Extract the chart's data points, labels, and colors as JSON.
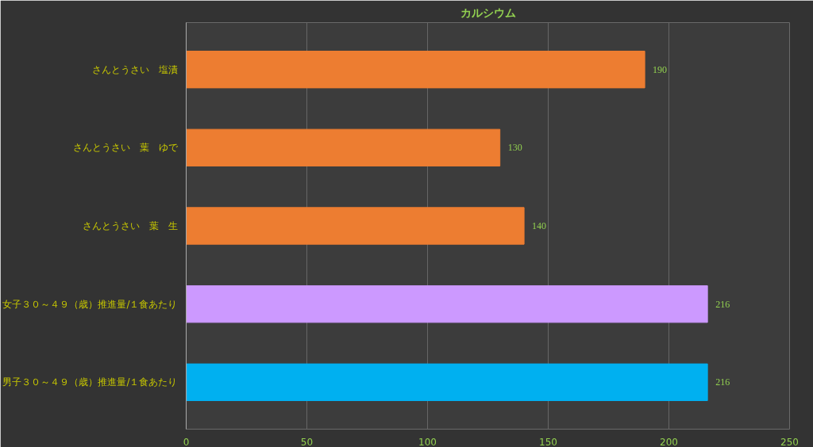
{
  "chart_data": {
    "type": "bar",
    "orientation": "horizontal",
    "title": "カルシウム",
    "categories": [
      "さんとうさい　塩漬",
      "さんとうさい　葉　ゆで",
      "さんとうさい　葉　生",
      "女子３０～４９（歳）推進量/１食あたり",
      "男子３０～４９（歳）推進量/１食あたり"
    ],
    "values": [
      190,
      130,
      140,
      216,
      216
    ],
    "colors": [
      "#ed7d31",
      "#ed7d31",
      "#ed7d31",
      "#cc99ff",
      "#00b0f0"
    ],
    "xlim": [
      0,
      250
    ],
    "xticks": [
      0,
      50,
      100,
      150,
      200,
      250
    ],
    "grid": "x",
    "data_labels": true
  }
}
